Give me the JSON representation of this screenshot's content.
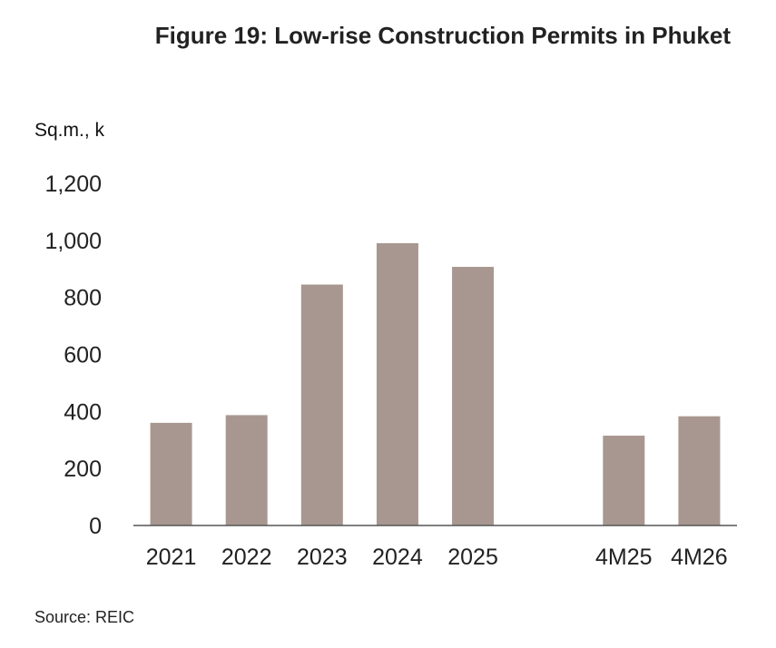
{
  "title": "Figure 19: Low-rise Construction Permits in Phuket",
  "unit_label": "Sq.m., k",
  "source": "Source: REIC",
  "chart_data": {
    "type": "bar",
    "title": "Figure 19: Low-rise Construction Permits in Phuket",
    "ylabel": "Sq.m., k",
    "xlabel": "",
    "categories": [
      "2021",
      "2022",
      "2023",
      "2024",
      "2025",
      "",
      "4M25",
      "4M26"
    ],
    "values": [
      360,
      387,
      845,
      990,
      907,
      null,
      315,
      383
    ],
    "ylim": [
      0,
      1200
    ],
    "yticks": [
      0,
      200,
      400,
      600,
      800,
      1000,
      1200
    ],
    "ytick_labels": [
      "0",
      "200",
      "400",
      "600",
      "800",
      "1,000",
      "1,200"
    ],
    "grid": false,
    "legend": "none",
    "bar_color": "#a89790",
    "axis_color": "#555555"
  }
}
